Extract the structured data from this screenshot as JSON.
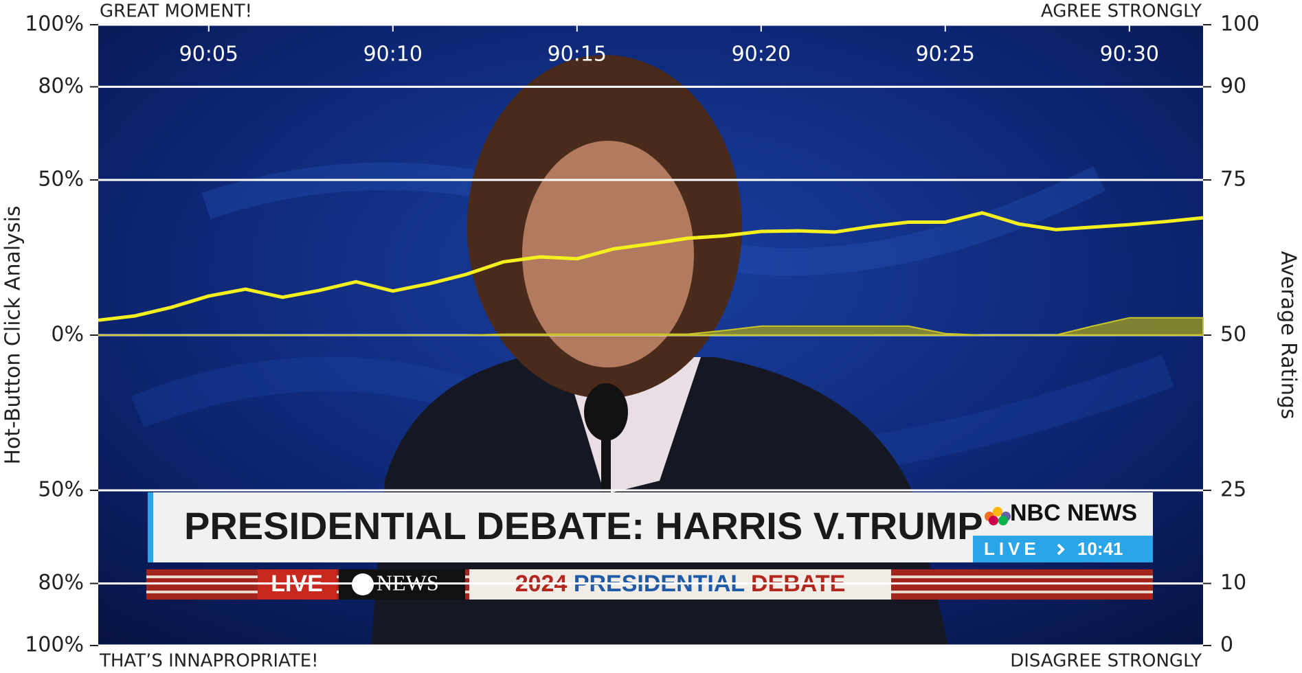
{
  "chart_data": {
    "type": "line",
    "top_left_label": "GREAT MOMENT!",
    "top_right_label": "AGREE STRONGLY",
    "bottom_left_label": "THAT’S INNAPROPRIATE!",
    "bottom_right_label": "DISAGREE STRONGLY",
    "y_label": "Hot-Button Click Analysis",
    "y2_label": "Average Ratings",
    "x": [
      5402,
      5403,
      5404,
      5405,
      5406,
      5407,
      5408,
      5409,
      5410,
      5411,
      5412,
      5413,
      5414,
      5415,
      5416,
      5417,
      5418,
      5419,
      5420,
      5421,
      5422,
      5423,
      5424,
      5425,
      5426,
      5427,
      5428,
      5429,
      5430,
      5431,
      5432
    ],
    "xlim": [
      5402,
      5432
    ],
    "xticks": [
      {
        "value": 5405,
        "label": "90:05"
      },
      {
        "value": 5410,
        "label": "90:10"
      },
      {
        "value": 5415,
        "label": "90:15"
      },
      {
        "value": 5420,
        "label": "90:20"
      },
      {
        "value": 5425,
        "label": "90:25"
      },
      {
        "value": 5430,
        "label": "90:30"
      }
    ],
    "ylim": [
      -100,
      100
    ],
    "yticks": [
      {
        "value": -100,
        "label": "100%"
      },
      {
        "value": -80,
        "label": "80%"
      },
      {
        "value": -50,
        "label": "50%"
      },
      {
        "value": 0,
        "label": "0%"
      },
      {
        "value": 50,
        "label": "50%"
      },
      {
        "value": 80,
        "label": "80%"
      },
      {
        "value": 100,
        "label": "100%"
      }
    ],
    "y2lim": [
      0,
      100
    ],
    "y2ticks": [
      0,
      10,
      25,
      50,
      75,
      90,
      100
    ],
    "grid": true,
    "series": [
      {
        "type": "line",
        "axis": "y2",
        "color": "#f4f01e",
        "values": [
          52.4,
          53.1,
          54.5,
          56.3,
          57.4,
          56.1,
          57.2,
          58.6,
          57.1,
          58.3,
          59.8,
          61.8,
          62.6,
          62.3,
          63.9,
          64.7,
          65.6,
          66.0,
          66.7,
          66.8,
          66.6,
          67.5,
          68.2,
          68.2,
          69.7,
          67.9,
          67.0,
          67.4,
          67.8,
          68.3,
          68.9
        ]
      },
      {
        "type": "area",
        "axis": "y",
        "color": "#9c9a22",
        "values": [
          0,
          0,
          0,
          0,
          0,
          0,
          0,
          0,
          0,
          0,
          0,
          0.3,
          0.3,
          0.3,
          0.3,
          0.3,
          0.3,
          1.5,
          2.9,
          2.9,
          2.9,
          2.9,
          2.9,
          0.5,
          0,
          0,
          0,
          2.9,
          5.6,
          5.6,
          5.6
        ]
      }
    ]
  },
  "video": {
    "nbc_headline": "PRESIDENTIAL DEBATE: HARRIS V.TRUMP",
    "nbc_logo": "NBC NEWS",
    "nbc_live": "LIVE",
    "nbc_time": "10:41",
    "abc_live": "LIVE",
    "abc_logo": "NEWS",
    "banner": [
      "2024",
      "PRESIDENTIAL",
      "DEBATE"
    ]
  }
}
